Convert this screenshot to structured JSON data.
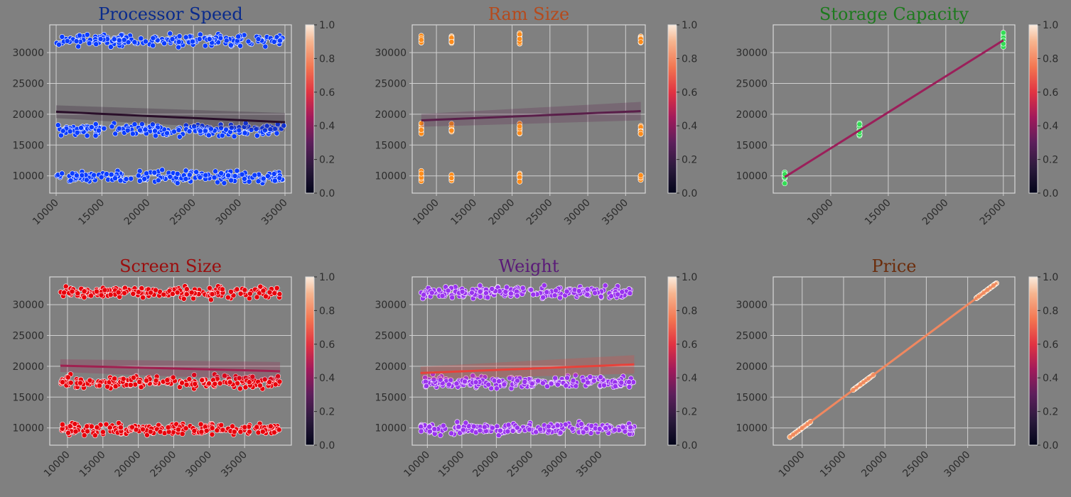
{
  "colorbar": {
    "ticks": [
      "0.0",
      "0.2",
      "0.4",
      "0.6",
      "0.8",
      "1.0"
    ],
    "colormap": "rocket"
  },
  "chart_data": [
    {
      "type": "scatter",
      "title": "Processor Speed",
      "title_color": "#0a2b8c",
      "point_color": "#0b3cff",
      "line_color": "#2a0f2a",
      "xlim": [
        9300,
        35700
      ],
      "ylim": [
        7200,
        34500
      ],
      "xticks": [
        "10000",
        "15000",
        "20000",
        "25000",
        "30000",
        "35000"
      ],
      "xtick_values": [
        10000,
        15000,
        20000,
        25000,
        30000,
        35000
      ],
      "yticks": [
        "10000",
        "15000",
        "20000",
        "25000",
        "30000"
      ],
      "ytick_values": [
        10000,
        15000,
        20000,
        25000,
        30000
      ],
      "x_distribution": "uniform",
      "x_range": [
        10000,
        35000
      ],
      "clusters": [
        32000,
        17500,
        9800
      ],
      "regression": {
        "x": [
          10000,
          35000
        ],
        "y": [
          20400,
          18700
        ]
      }
    },
    {
      "type": "scatter",
      "title": "Ram Size",
      "title_color": "#b64a1c",
      "point_color": "#ff8c1a",
      "line_color": "#5a1f4a",
      "xlim": [
        6800,
        37600
      ],
      "ylim": [
        7200,
        34500
      ],
      "xticks": [
        "10000",
        "15000",
        "20000",
        "25000",
        "30000",
        "35000"
      ],
      "xtick_values": [
        10000,
        15000,
        20000,
        25000,
        30000,
        35000
      ],
      "yticks": [
        "10000",
        "15000",
        "20000",
        "25000",
        "30000"
      ],
      "ytick_values": [
        10000,
        15000,
        20000,
        25000,
        30000
      ],
      "x_distribution": "discrete",
      "x_levels": [
        8000,
        12000,
        21000,
        37000
      ],
      "clusters": [
        32000,
        17500,
        9800
      ],
      "regression": {
        "x": [
          8000,
          37000
        ],
        "y": [
          19000,
          20500
        ]
      }
    },
    {
      "type": "scatter",
      "title": "Storage Capacity",
      "title_color": "#1d7a1d",
      "point_color": "#33dd55",
      "line_color": "#9b1f5a",
      "xlim": [
        5000,
        26000
      ],
      "ylim": [
        7200,
        34500
      ],
      "xticks": [
        "10000",
        "15000",
        "20000",
        "25000"
      ],
      "xtick_values": [
        10000,
        15000,
        20000,
        25000
      ],
      "yticks": [
        "10000",
        "15000",
        "20000",
        "25000",
        "30000"
      ],
      "ytick_values": [
        10000,
        15000,
        20000,
        25000,
        30000
      ],
      "x_distribution": "discrete",
      "x_levels": [
        6000,
        12500,
        25000
      ],
      "level_clusters": [
        9800,
        17500,
        32000
      ],
      "regression": {
        "x": [
          6000,
          25000
        ],
        "y": [
          9800,
          32000
        ]
      }
    },
    {
      "type": "scatter",
      "title": "Screen Size",
      "title_color": "#9b0d0d",
      "point_color": "#e8000b",
      "line_color": "#a02050",
      "xlim": [
        7500,
        41600
      ],
      "ylim": [
        7200,
        34500
      ],
      "xticks": [
        "10000",
        "15000",
        "20000",
        "25000",
        "30000",
        "35000"
      ],
      "xtick_values": [
        10000,
        15000,
        20000,
        25000,
        30000,
        35000
      ],
      "yticks": [
        "10000",
        "15000",
        "20000",
        "25000",
        "30000"
      ],
      "ytick_values": [
        10000,
        15000,
        20000,
        25000,
        30000
      ],
      "x_distribution": "uniform",
      "x_range": [
        9000,
        40000
      ],
      "clusters": [
        32000,
        17500,
        9800
      ],
      "regression": {
        "x": [
          9000,
          40000
        ],
        "y": [
          20100,
          19200
        ]
      }
    },
    {
      "type": "scatter",
      "title": "Weight",
      "title_color": "#5a1a78",
      "point_color": "#9933ee",
      "line_color": "#e8413a",
      "xlim": [
        7800,
        41600
      ],
      "ylim": [
        7200,
        34500
      ],
      "xticks": [
        "10000",
        "15000",
        "20000",
        "25000",
        "30000",
        "35000"
      ],
      "xtick_values": [
        10000,
        15000,
        20000,
        25000,
        30000,
        35000
      ],
      "yticks": [
        "10000",
        "15000",
        "20000",
        "25000",
        "30000"
      ],
      "ytick_values": [
        10000,
        15000,
        20000,
        25000,
        30000
      ],
      "x_distribution": "uniform",
      "x_range": [
        9000,
        40000
      ],
      "clusters": [
        32000,
        17500,
        9800
      ],
      "regression": {
        "x": [
          9000,
          40000
        ],
        "y": [
          18900,
          20300
        ]
      }
    },
    {
      "type": "scatter",
      "title": "Price",
      "title_color": "#6b2d0c",
      "point_color": "#f5a36a",
      "line_color": "#f08860",
      "xlim": [
        6500,
        35700
      ],
      "ylim": [
        7200,
        34500
      ],
      "xticks": [
        "10000",
        "15000",
        "20000",
        "25000",
        "30000"
      ],
      "xtick_values": [
        10000,
        15000,
        20000,
        25000,
        30000
      ],
      "yticks": [
        "10000",
        "15000",
        "20000",
        "25000",
        "30000"
      ],
      "ytick_values": [
        10000,
        15000,
        20000,
        25000,
        30000
      ],
      "x_distribution": "identity",
      "segments": [
        [
          8500,
          11000
        ],
        [
          16000,
          18600
        ],
        [
          31000,
          33500
        ]
      ],
      "regression": {
        "x": [
          8500,
          33500
        ],
        "y": [
          8500,
          33500
        ]
      }
    }
  ]
}
